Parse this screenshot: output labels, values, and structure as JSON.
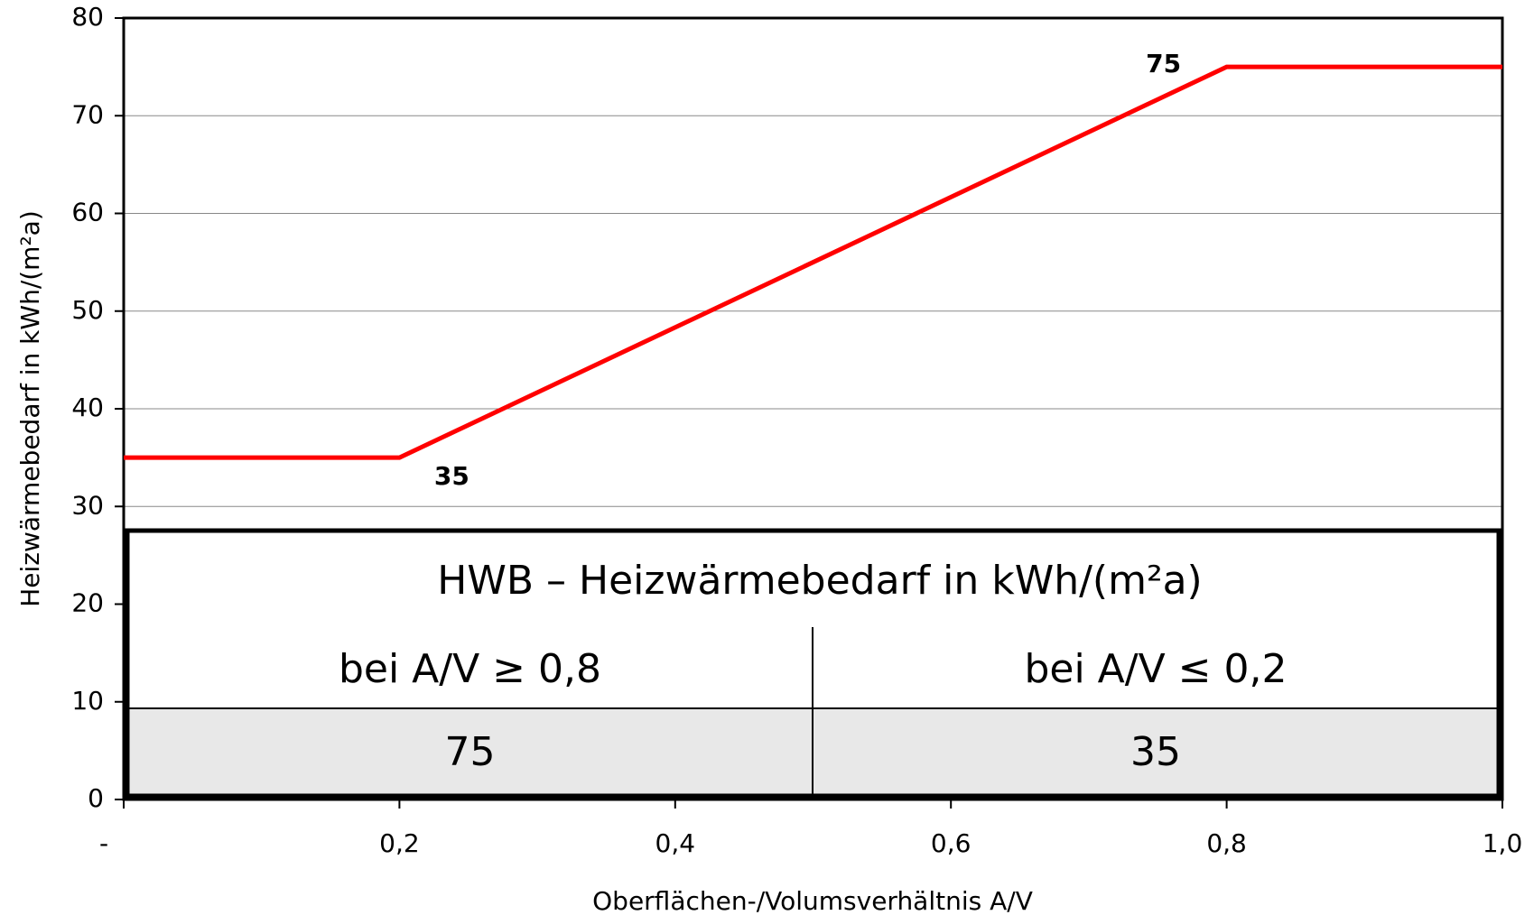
{
  "chart_data": {
    "type": "line",
    "xlabel": "Oberflächen-/Volumsverhältnis A/V",
    "ylabel": "Heizwärmebedarf in kWh/(m²a)",
    "x": [
      0,
      0.2,
      0.8,
      1.0
    ],
    "series": [
      {
        "color": "#ff0000",
        "values": [
          35,
          35,
          75,
          75
        ]
      }
    ],
    "xlim": [
      0,
      1.0
    ],
    "xticks": [
      {
        "value": 0,
        "label": "-"
      },
      {
        "value": 0.2,
        "label": "0,2"
      },
      {
        "value": 0.4,
        "label": "0,4"
      },
      {
        "value": 0.6,
        "label": "0,6"
      },
      {
        "value": 0.8,
        "label": "0,8"
      },
      {
        "value": 1.0,
        "label": "1,0"
      }
    ],
    "ylim": [
      0,
      80
    ],
    "yticks": [
      0,
      10,
      20,
      30,
      40,
      50,
      60,
      70,
      80
    ],
    "grid": true
  },
  "table": {
    "title": "HWB – Heizwärmebedarf in kWh/(m²a)",
    "header": [
      "bei A/V ≥ 0,8",
      "bei A/V ≤ 0,2"
    ],
    "values": [
      "75",
      "35"
    ]
  }
}
